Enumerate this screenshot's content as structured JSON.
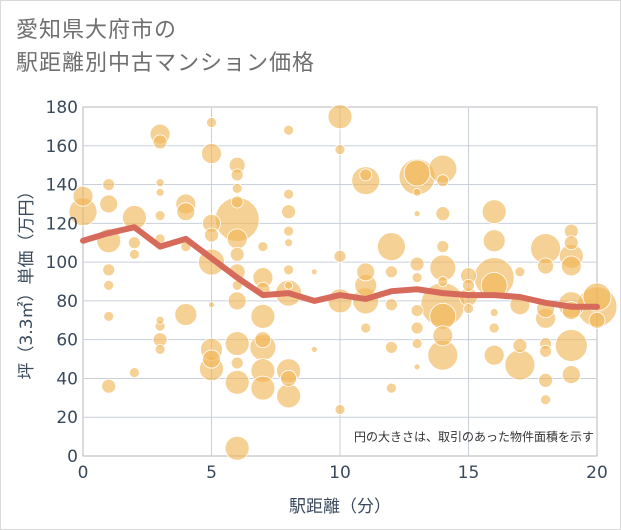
{
  "title": {
    "line1": "愛知県大府市の",
    "line2": "駅距離別中古マンション価格"
  },
  "chart_data": {
    "type": "scatter",
    "xlabel": "駅距離（分）",
    "ylabel": "坪（3.3㎡）単価（万円）",
    "xlim": [
      0,
      20
    ],
    "ylim": [
      0,
      180
    ],
    "xticks": [
      0,
      5,
      10,
      15,
      20
    ],
    "yticks": [
      0,
      20,
      40,
      60,
      80,
      100,
      120,
      140,
      160,
      180
    ],
    "grid": true,
    "annotation": "円の大きさは、取引のあった物件面積を示す",
    "colors": {
      "bubble": "#f0b455",
      "line": "#d66b5c",
      "grid": "#c9d0d9",
      "plot_border": "#b7b7b7"
    },
    "series": [
      {
        "type": "line",
        "x": [
          0,
          1,
          2,
          3,
          4,
          5,
          6,
          7,
          8,
          9,
          10,
          11,
          12,
          13,
          14,
          15,
          16,
          17,
          18,
          19,
          20
        ],
        "y": [
          111,
          115,
          118,
          108,
          112,
          102,
          92,
          83,
          84,
          80,
          83,
          81,
          85,
          86,
          84,
          83,
          83,
          82,
          79,
          77,
          77
        ]
      },
      {
        "type": "bubble",
        "points": [
          [
            0,
            134,
            10
          ],
          [
            0,
            126,
            14
          ],
          [
            1,
            140,
            6
          ],
          [
            1,
            130,
            9
          ],
          [
            1,
            111,
            12
          ],
          [
            1,
            96,
            6
          ],
          [
            1,
            88,
            5
          ],
          [
            1,
            72,
            5
          ],
          [
            1,
            36,
            7
          ],
          [
            2,
            123,
            12
          ],
          [
            2,
            110,
            6
          ],
          [
            2,
            104,
            5
          ],
          [
            2,
            43,
            5
          ],
          [
            3,
            166,
            10
          ],
          [
            3,
            162,
            7
          ],
          [
            3,
            141,
            4
          ],
          [
            3,
            136,
            4
          ],
          [
            3,
            124,
            5
          ],
          [
            3,
            112,
            5
          ],
          [
            3,
            70,
            4
          ],
          [
            3,
            67,
            5
          ],
          [
            3,
            60,
            7
          ],
          [
            3,
            55,
            5
          ],
          [
            4,
            130,
            10
          ],
          [
            4,
            126,
            9
          ],
          [
            4,
            108,
            5
          ],
          [
            4,
            73,
            11
          ],
          [
            5,
            172,
            5
          ],
          [
            5,
            156,
            10
          ],
          [
            5,
            120,
            9
          ],
          [
            5,
            114,
            7
          ],
          [
            5,
            100,
            13
          ],
          [
            5,
            78,
            3
          ],
          [
            5,
            55,
            11
          ],
          [
            5,
            50,
            9
          ],
          [
            5,
            45,
            12
          ],
          [
            6,
            150,
            8
          ],
          [
            6,
            145,
            6
          ],
          [
            6,
            138,
            5
          ],
          [
            6,
            131,
            6
          ],
          [
            6,
            122,
            22
          ],
          [
            6,
            112,
            10
          ],
          [
            6,
            104,
            7
          ],
          [
            6,
            95,
            8
          ],
          [
            6,
            88,
            5
          ],
          [
            6,
            80,
            9
          ],
          [
            6,
            58,
            12
          ],
          [
            6,
            48,
            6
          ],
          [
            6,
            38,
            12
          ],
          [
            6,
            4,
            12
          ],
          [
            7,
            108,
            5
          ],
          [
            7,
            92,
            10
          ],
          [
            7,
            86,
            7
          ],
          [
            7,
            72,
            12
          ],
          [
            7,
            60,
            8
          ],
          [
            7,
            56,
            13
          ],
          [
            7,
            44,
            12
          ],
          [
            7,
            35,
            12
          ],
          [
            8,
            168,
            5
          ],
          [
            8,
            135,
            5
          ],
          [
            8,
            126,
            7
          ],
          [
            8,
            116,
            5
          ],
          [
            8,
            110,
            4
          ],
          [
            8,
            96,
            5
          ],
          [
            8,
            88,
            4
          ],
          [
            8,
            84,
            13
          ],
          [
            8,
            44,
            12
          ],
          [
            8,
            40,
            8
          ],
          [
            8,
            31,
            12
          ],
          [
            9,
            95,
            3
          ],
          [
            9,
            55,
            3
          ],
          [
            10,
            175,
            12
          ],
          [
            10,
            158,
            5
          ],
          [
            10,
            103,
            6
          ],
          [
            10,
            80,
            12
          ],
          [
            10,
            24,
            5
          ],
          [
            11,
            145,
            6
          ],
          [
            11,
            142,
            14
          ],
          [
            11,
            95,
            9
          ],
          [
            11,
            88,
            11
          ],
          [
            11,
            80,
            13
          ],
          [
            11,
            66,
            5
          ],
          [
            12,
            108,
            14
          ],
          [
            12,
            95,
            6
          ],
          [
            12,
            78,
            6
          ],
          [
            12,
            56,
            6
          ],
          [
            12,
            35,
            5
          ],
          [
            13,
            146,
            13
          ],
          [
            13,
            144,
            18
          ],
          [
            13,
            136,
            4
          ],
          [
            13,
            125,
            3
          ],
          [
            13,
            99,
            7
          ],
          [
            13,
            92,
            5
          ],
          [
            13,
            75,
            6
          ],
          [
            13,
            66,
            6
          ],
          [
            13,
            58,
            5
          ],
          [
            13,
            46,
            3
          ],
          [
            14,
            148,
            14
          ],
          [
            14,
            142,
            6
          ],
          [
            14,
            125,
            7
          ],
          [
            14,
            108,
            6
          ],
          [
            14,
            97,
            13
          ],
          [
            14,
            90,
            5
          ],
          [
            14,
            78,
            22
          ],
          [
            14,
            72,
            13
          ],
          [
            14,
            62,
            10
          ],
          [
            14,
            52,
            15
          ],
          [
            15,
            93,
            8
          ],
          [
            15,
            88,
            6
          ],
          [
            15,
            82,
            9
          ],
          [
            15,
            76,
            5
          ],
          [
            16,
            126,
            12
          ],
          [
            16,
            111,
            11
          ],
          [
            16,
            92,
            20
          ],
          [
            16,
            88,
            13
          ],
          [
            16,
            74,
            4
          ],
          [
            16,
            66,
            5
          ],
          [
            16,
            52,
            10
          ],
          [
            17,
            95,
            5
          ],
          [
            17,
            78,
            10
          ],
          [
            17,
            57,
            7
          ],
          [
            17,
            47,
            15
          ],
          [
            18,
            107,
            15
          ],
          [
            18,
            98,
            8
          ],
          [
            18,
            76,
            9
          ],
          [
            18,
            71,
            10
          ],
          [
            18,
            58,
            6
          ],
          [
            18,
            54,
            6
          ],
          [
            18,
            39,
            7
          ],
          [
            18,
            29,
            5
          ],
          [
            19,
            116,
            7
          ],
          [
            19,
            110,
            7
          ],
          [
            19,
            103,
            12
          ],
          [
            19,
            98,
            10
          ],
          [
            19,
            78,
            13
          ],
          [
            19,
            75,
            9
          ],
          [
            19,
            57,
            16
          ],
          [
            19,
            42,
            9
          ],
          [
            20,
            82,
            14
          ],
          [
            20,
            77,
            20
          ],
          [
            20,
            70,
            8
          ]
        ]
      }
    ]
  }
}
